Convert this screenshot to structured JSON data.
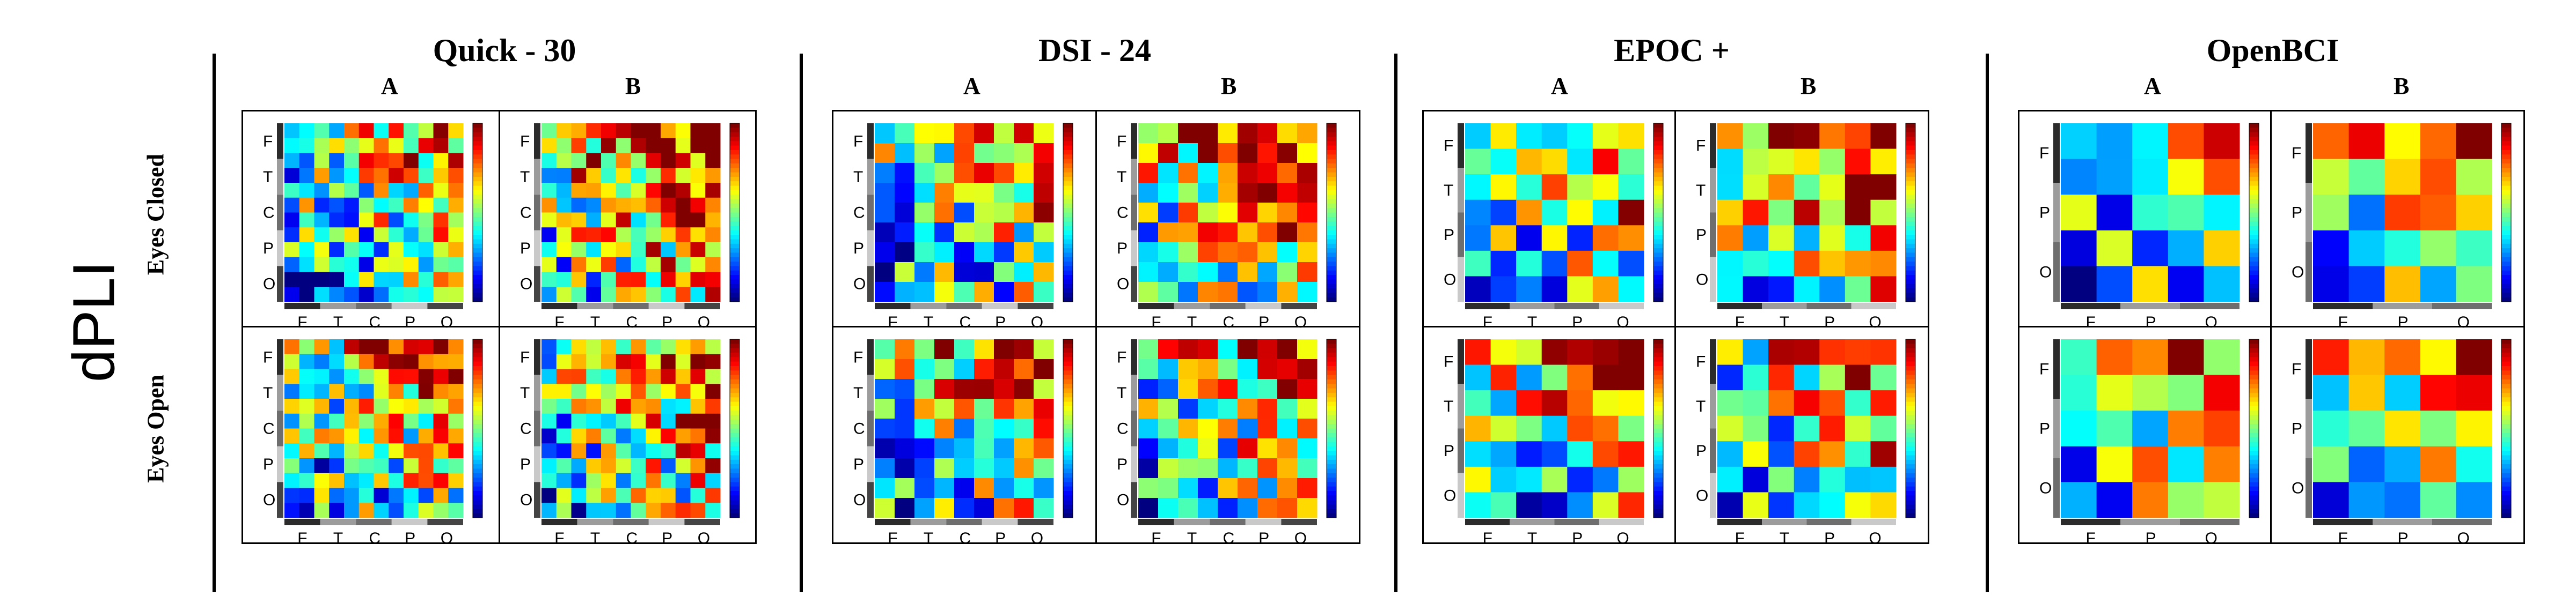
{
  "figure": {
    "main_title": "dPLI",
    "rows": [
      "Eyes Closed",
      "Eyes Open"
    ]
  },
  "chart_data": [
    {
      "type": "heatmap",
      "title": "Quick - 30",
      "columns": [
        "A",
        "B"
      ],
      "grid": 12,
      "y_ticks": [
        "F",
        "T",
        "C",
        "P",
        "O"
      ],
      "x_ticks": [
        "F",
        "T",
        "C",
        "P",
        "O"
      ],
      "seed": 11,
      "colorbar": true,
      "colors": {
        "low": "#00008f",
        "high": "#8f0000"
      }
    },
    {
      "type": "heatmap",
      "title": "DSI - 24",
      "columns": [
        "A",
        "B"
      ],
      "grid": 9,
      "y_ticks": [
        "F",
        "T",
        "C",
        "P",
        "O"
      ],
      "x_ticks": [
        "F",
        "T",
        "C",
        "P",
        "O"
      ],
      "seed": 23,
      "colorbar": true
    },
    {
      "type": "heatmap",
      "title": "EPOC +",
      "columns": [
        "A",
        "B"
      ],
      "grid": 7,
      "y_ticks": [
        "F",
        "T",
        "P",
        "O"
      ],
      "x_ticks": [
        "F",
        "T",
        "P",
        "O"
      ],
      "seed": 37,
      "colorbar": true
    },
    {
      "type": "heatmap",
      "title": "OpenBCI",
      "columns": [
        "A",
        "B"
      ],
      "grid": 5,
      "y_ticks": [
        "F",
        "P",
        "O"
      ],
      "x_ticks": [
        "F",
        "P",
        "O"
      ],
      "seed": 53,
      "colorbar": true
    }
  ]
}
